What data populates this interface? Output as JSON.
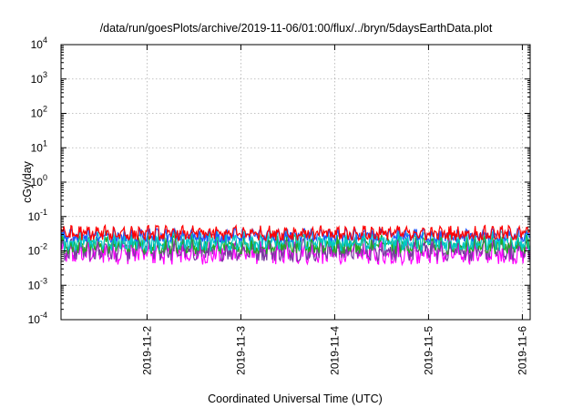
{
  "chart_data": {
    "type": "area",
    "title": "/data/run/goesPlots/archive/2019-11-06/01:00/flux/../bryn/5daysEarthData.plot",
    "xlabel": "Coordinated Universal Time (UTC)",
    "ylabel": "cGy/day",
    "yscale": "log",
    "ylim": [
      0.0001,
      10000
    ],
    "xlim": [
      "2019-11-01T02:00",
      "2019-11-06T02:00"
    ],
    "grid": true,
    "y_ticks": [
      {
        "base": "10",
        "exp": "-4"
      },
      {
        "base": "10",
        "exp": "-3"
      },
      {
        "base": "10",
        "exp": "-2"
      },
      {
        "base": "10",
        "exp": "-1"
      },
      {
        "base": "10",
        "exp": "0"
      },
      {
        "base": "10",
        "exp": "1"
      },
      {
        "base": "10",
        "exp": "2"
      },
      {
        "base": "10",
        "exp": "3"
      },
      {
        "base": "10",
        "exp": "4"
      }
    ],
    "x_ticks": [
      "2019-11-2",
      "2019-11-3",
      "2019-11-4",
      "2019-11-5",
      "2019-11-6"
    ],
    "series": [
      {
        "color": "#ff0000",
        "max": 0.055,
        "min": 0.02
      },
      {
        "color": "#2255ff",
        "max": 0.045,
        "min": 0.018
      },
      {
        "color": "#00c8c8",
        "max": 0.04,
        "min": 0.01
      },
      {
        "color": "#22aa22",
        "max": 0.03,
        "min": 0.008
      },
      {
        "color": "#7a3aa0",
        "max": 0.025,
        "min": 0.005
      },
      {
        "color": "#ff00ff",
        "max": 0.02,
        "min": 0.004
      }
    ]
  }
}
